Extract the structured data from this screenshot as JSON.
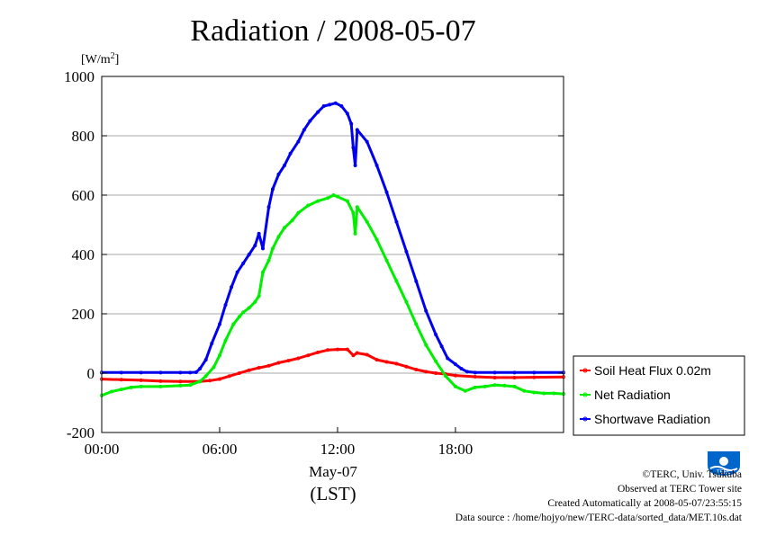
{
  "chart_data": {
    "type": "line",
    "title": "Radiation / 2008-05-07",
    "ylabel": "[W/m²]",
    "xlabel": "May-07",
    "xlabel2": "(LST)",
    "x_ticks": [
      "00:00",
      "06:00",
      "12:00",
      "18:00"
    ],
    "y_ticks": [
      "-200",
      "0",
      "200",
      "400",
      "600",
      "800",
      "1000"
    ],
    "ylim": [
      -200,
      1000
    ],
    "xlim": [
      0,
      23.5
    ],
    "x_unit": "hours (LST)",
    "grid": true,
    "legend": {
      "placement": "right-bottom-outside"
    },
    "series": [
      {
        "name": "Soil Heat Flux 0.02m",
        "color": "#ff0000",
        "x": [
          0,
          1,
          2,
          3,
          4,
          5,
          5.5,
          6,
          6.5,
          7,
          7.5,
          8,
          8.5,
          9,
          9.5,
          10,
          10.5,
          11,
          11.5,
          12,
          12.5,
          12.8,
          13,
          13.5,
          14,
          14.5,
          15,
          15.5,
          16,
          16.5,
          17,
          17.5,
          18,
          19,
          20,
          21,
          22,
          23.5
        ],
        "values": [
          -20,
          -22,
          -24,
          -27,
          -28,
          -28,
          -25,
          -20,
          -10,
          0,
          10,
          18,
          25,
          35,
          42,
          50,
          60,
          70,
          78,
          80,
          80,
          60,
          68,
          62,
          45,
          38,
          32,
          22,
          12,
          5,
          0,
          -3,
          -8,
          -12,
          -15,
          -15,
          -14,
          -13
        ]
      },
      {
        "name": "Net Radiation",
        "color": "#00ee00",
        "x": [
          0,
          0.5,
          1,
          1.5,
          2,
          3,
          4,
          4.5,
          5,
          5.3,
          5.7,
          6,
          6.3,
          6.7,
          7,
          7.2,
          7.5,
          7.8,
          8,
          8.2,
          8.5,
          8.7,
          9,
          9.3,
          9.7,
          10,
          10.5,
          11,
          11.5,
          11.8,
          12,
          12.5,
          12.8,
          12.9,
          13,
          13.5,
          14,
          14.5,
          15,
          15.5,
          16,
          16.5,
          17,
          17.5,
          18,
          18.5,
          19,
          19.5,
          20,
          20.5,
          21,
          21.5,
          22,
          22.5,
          23,
          23.5
        ],
        "values": [
          -75,
          -62,
          -55,
          -48,
          -45,
          -45,
          -42,
          -40,
          -28,
          -10,
          20,
          60,
          110,
          165,
          190,
          205,
          220,
          240,
          260,
          340,
          380,
          420,
          460,
          490,
          515,
          540,
          565,
          580,
          590,
          600,
          595,
          580,
          540,
          470,
          560,
          510,
          450,
          380,
          310,
          240,
          165,
          95,
          40,
          -10,
          -45,
          -60,
          -48,
          -45,
          -40,
          -42,
          -45,
          -60,
          -65,
          -68,
          -68,
          -70
        ]
      },
      {
        "name": "Shortwave Radiation",
        "color": "#0000ee",
        "x": [
          0,
          1,
          2,
          3,
          4,
          4.5,
          4.8,
          5,
          5.3,
          5.6,
          6,
          6.3,
          6.6,
          6.9,
          7.2,
          7.5,
          7.8,
          8,
          8.2,
          8.5,
          8.7,
          9,
          9.3,
          9.6,
          10,
          10.3,
          10.6,
          11,
          11.3,
          11.6,
          11.9,
          12.2,
          12.5,
          12.7,
          12.8,
          12.9,
          13,
          13.5,
          14,
          14.5,
          15,
          15.5,
          16,
          16.5,
          17,
          17.3,
          17.6,
          18,
          18.3,
          18.6,
          19,
          20,
          21,
          22,
          23.5
        ],
        "values": [
          2,
          2,
          2,
          2,
          2,
          2,
          3,
          15,
          45,
          100,
          165,
          230,
          290,
          340,
          370,
          400,
          430,
          470,
          420,
          560,
          620,
          670,
          700,
          740,
          780,
          820,
          850,
          880,
          900,
          905,
          910,
          900,
          875,
          840,
          760,
          700,
          820,
          780,
          700,
          610,
          510,
          410,
          310,
          210,
          130,
          90,
          50,
          30,
          15,
          5,
          2,
          2,
          2,
          2,
          2
        ]
      }
    ]
  },
  "footer": {
    "copyright": "©TERC, Univ. Tsukuba",
    "observed": "Observed at TERC Tower site",
    "created": "Created Automatically at 2008-05-07/23:55:15",
    "source": "Data source : /home/hojyo/new/TERC-data/sorted_data/MET.10s.dat"
  },
  "logo": {
    "text": "TERC",
    "color": "#0066cc"
  }
}
